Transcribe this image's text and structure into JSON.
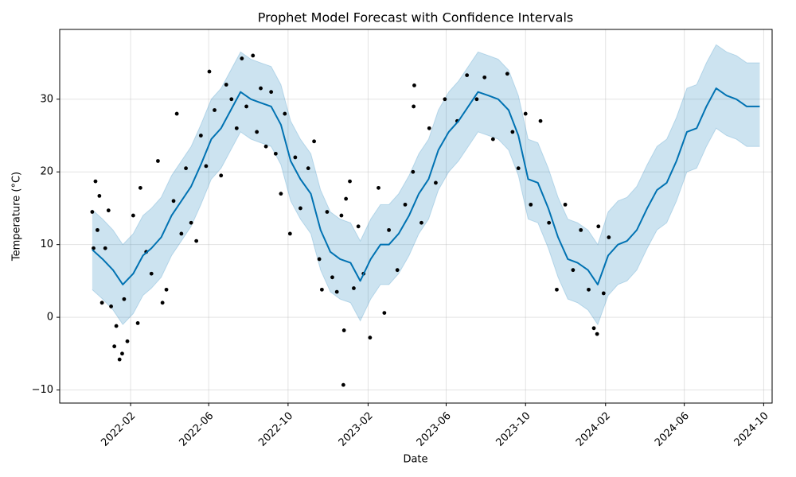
{
  "chart_data": {
    "type": "forecast",
    "title": "Prophet Model Forecast with Confidence Intervals",
    "x_label": "Date",
    "y_label": "Temperature (°C)",
    "xlim": [
      "2021-10-15",
      "2024-10-14"
    ],
    "xticks": [
      "2022-02",
      "2022-06",
      "2022-10",
      "2023-02",
      "2023-06",
      "2023-10",
      "2024-02",
      "2024-06",
      "2024-10"
    ],
    "ylim": [
      -11.8,
      39.6
    ],
    "yticks": [
      {
        "value": -10,
        "label": "−10"
      },
      0,
      10,
      20,
      30
    ],
    "grid": true,
    "forecast": {
      "color": "#0072B2",
      "band_color": "#0072B2",
      "x": [
        "2021-12-04",
        "2021-12-20",
        "2022-01-05",
        "2022-01-20",
        "2022-02-05",
        "2022-02-20",
        "2022-03-05",
        "2022-03-20",
        "2022-04-05",
        "2022-04-20",
        "2022-05-05",
        "2022-05-20",
        "2022-06-05",
        "2022-06-20",
        "2022-07-05",
        "2022-07-20",
        "2022-08-05",
        "2022-08-20",
        "2022-09-05",
        "2022-09-20",
        "2022-10-05",
        "2022-10-20",
        "2022-11-05",
        "2022-11-20",
        "2022-12-05",
        "2022-12-20",
        "2023-01-05",
        "2023-01-20",
        "2023-02-05",
        "2023-02-20",
        "2023-03-05",
        "2023-03-20",
        "2023-04-05",
        "2023-04-20",
        "2023-05-05",
        "2023-05-20",
        "2023-06-05",
        "2023-06-20",
        "2023-07-05",
        "2023-07-20",
        "2023-08-05",
        "2023-08-20",
        "2023-09-05",
        "2023-09-20",
        "2023-10-05",
        "2023-10-20",
        "2023-11-05",
        "2023-11-20",
        "2023-12-05",
        "2023-12-20",
        "2024-01-05",
        "2024-01-20",
        "2024-02-05",
        "2024-02-20",
        "2024-03-05",
        "2024-03-20",
        "2024-04-05",
        "2024-04-20",
        "2024-05-05",
        "2024-05-20",
        "2024-06-05",
        "2024-06-20",
        "2024-07-05",
        "2024-07-20",
        "2024-08-05",
        "2024-08-20",
        "2024-09-05",
        "2024-09-25"
      ],
      "yhat": [
        9.3,
        8,
        6.5,
        4.5,
        6,
        8.5,
        9.5,
        11,
        14,
        16,
        18,
        21,
        24.5,
        26,
        28.5,
        31,
        30,
        29.5,
        29,
        26.5,
        21.5,
        19,
        17,
        12,
        9,
        8,
        7.5,
        5,
        8,
        10,
        10,
        11.5,
        14,
        17,
        19,
        23,
        25.5,
        27,
        29,
        31,
        30.5,
        30,
        28.5,
        25,
        19,
        18.5,
        15,
        11,
        8,
        7.5,
        6.5,
        4.5,
        8.5,
        10,
        10.5,
        12,
        15,
        17.5,
        18.5,
        21.5,
        25.5,
        26,
        29,
        31.5,
        30.5,
        30,
        29,
        29
      ],
      "upper": [
        14.8,
        13.5,
        12,
        10,
        11.5,
        14,
        15,
        16.5,
        19.5,
        21.5,
        23.5,
        26.5,
        30,
        31.5,
        34,
        36.5,
        35.5,
        35,
        34.5,
        32,
        27,
        24.5,
        22.5,
        17.5,
        14.5,
        13.5,
        13,
        10.5,
        13.5,
        15.5,
        15.5,
        17,
        19.5,
        22.5,
        24.5,
        28.5,
        31,
        32.5,
        34.5,
        36.5,
        36,
        35.5,
        34,
        30.5,
        24.5,
        24,
        20.5,
        16.5,
        13.5,
        13,
        12,
        10,
        14.5,
        16,
        16.5,
        18,
        21,
        23.5,
        24.5,
        27.5,
        31.5,
        32,
        35,
        37.5,
        36.5,
        36,
        35,
        35
      ],
      "lower": [
        3.8,
        2.5,
        1,
        -1,
        0.5,
        3,
        4,
        5.5,
        8.5,
        10.5,
        12.5,
        15.5,
        19,
        20.5,
        23,
        25.5,
        24.5,
        24,
        23.5,
        21,
        16,
        13.5,
        11.5,
        6.5,
        3.5,
        2.5,
        2,
        -0.5,
        2.5,
        4.5,
        4.5,
        6,
        8.5,
        11.5,
        13.5,
        17.5,
        20,
        21.5,
        23.5,
        25.5,
        25,
        24.5,
        23,
        19.5,
        13.5,
        13,
        9.5,
        5.5,
        2.5,
        2,
        1,
        -1,
        3,
        4.5,
        5,
        6.5,
        9.5,
        12,
        13,
        16,
        20,
        20.5,
        23.5,
        26,
        25,
        24.5,
        23.5,
        23.5
      ]
    },
    "observed": {
      "color": "#000000",
      "x": [
        "2021-12-04",
        "2021-12-06",
        "2021-12-09",
        "2021-12-12",
        "2021-12-15",
        "2021-12-19",
        "2021-12-24",
        "2021-12-29",
        "2022-01-02",
        "2022-01-07",
        "2022-01-10",
        "2022-01-15",
        "2022-01-19",
        "2022-01-22",
        "2022-01-27",
        "2022-02-05",
        "2022-02-12",
        "2022-02-16",
        "2022-02-25",
        "2022-03-05",
        "2022-03-15",
        "2022-03-22",
        "2022-03-28",
        "2022-04-08",
        "2022-04-13",
        "2022-04-20",
        "2022-04-27",
        "2022-05-05",
        "2022-05-13",
        "2022-05-20",
        "2022-05-28",
        "2022-06-02",
        "2022-06-10",
        "2022-06-20",
        "2022-06-28",
        "2022-07-06",
        "2022-07-14",
        "2022-07-22",
        "2022-07-29",
        "2022-08-08",
        "2022-08-14",
        "2022-08-20",
        "2022-08-28",
        "2022-09-05",
        "2022-09-12",
        "2022-09-20",
        "2022-09-26",
        "2022-10-04",
        "2022-10-12",
        "2022-10-20",
        "2022-11-01",
        "2022-11-10",
        "2022-11-18",
        "2022-11-22",
        "2022-11-30",
        "2022-12-08",
        "2022-12-15",
        "2022-12-22",
        "2022-12-25",
        "2022-12-26",
        "2022-12-29",
        "2023-01-04",
        "2023-01-10",
        "2023-01-17",
        "2023-01-25",
        "2023-02-04",
        "2023-02-17",
        "2023-02-26",
        "2023-03-05",
        "2023-03-18",
        "2023-03-30",
        "2023-04-11",
        "2023-04-12",
        "2023-04-13",
        "2023-04-24",
        "2023-05-06",
        "2023-05-16",
        "2023-05-30",
        "2023-06-18",
        "2023-07-03",
        "2023-07-18",
        "2023-07-30",
        "2023-08-12",
        "2023-09-03",
        "2023-09-11",
        "2023-09-20",
        "2023-10-01",
        "2023-10-09",
        "2023-10-24",
        "2023-11-06",
        "2023-11-18",
        "2023-12-01",
        "2023-12-13",
        "2023-12-25",
        "2024-01-06",
        "2024-01-14",
        "2024-01-19",
        "2024-01-21",
        "2024-01-29",
        "2024-02-06"
      ],
      "y": [
        14.5,
        9.5,
        18.7,
        12,
        16.7,
        2,
        9.5,
        14.7,
        1.5,
        -4,
        -1.2,
        -5.8,
        -5,
        2.5,
        -3.3,
        14,
        -0.8,
        17.8,
        9,
        6,
        21.5,
        2,
        3.8,
        16,
        28,
        11.5,
        20.5,
        13,
        10.5,
        25,
        20.8,
        33.8,
        28.5,
        19.5,
        32,
        30,
        26,
        35.6,
        29,
        36,
        25.5,
        31.5,
        23.5,
        31,
        22.5,
        17,
        28,
        11.5,
        22,
        15,
        20.5,
        24.2,
        8,
        3.8,
        14.5,
        5.5,
        3.5,
        14,
        -9.3,
        -1.8,
        16.3,
        18.7,
        4,
        12.5,
        6,
        -2.8,
        17.8,
        0.6,
        12,
        6.5,
        15.5,
        20,
        29,
        31.9,
        13,
        26,
        18.5,
        30,
        27,
        33.3,
        30,
        33,
        24.5,
        33.5,
        25.5,
        20.5,
        28,
        15.5,
        27,
        13,
        3.8,
        15.5,
        6.5,
        12,
        3.8,
        -1.5,
        -2.3,
        12.5,
        3.3,
        11
      ]
    }
  }
}
